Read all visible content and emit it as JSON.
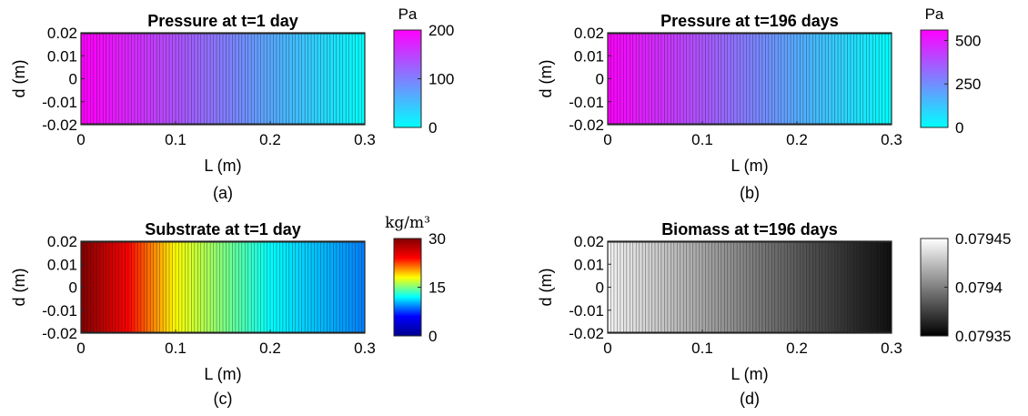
{
  "figure": {
    "panels": [
      {
        "title": "Pressure at t=1 day",
        "tag": "(a)",
        "xlabel": "L (m)",
        "ylabel": "d (m)",
        "colorbar": {
          "label": "Pa",
          "ticks": [
            "200",
            "100",
            "0"
          ],
          "colormap": "cool",
          "stops": [
            "#00ffff",
            "#ff00ff"
          ]
        }
      },
      {
        "title": "Pressure at t=196 days",
        "tag": "(b)",
        "xlabel": "L (m)",
        "ylabel": "d (m)",
        "colorbar": {
          "label": "Pa",
          "ticks": [
            "500",
            "250",
            "0"
          ],
          "colormap": "cool",
          "stops": [
            "#00ffff",
            "#ff00ff"
          ]
        }
      },
      {
        "title": "Substrate at t=1 day",
        "tag": "(c)",
        "xlabel": "L (m)",
        "ylabel": "d (m)",
        "colorbar": {
          "label": "kg/m³",
          "ticks": [
            "30",
            "15",
            "0"
          ],
          "colormap": "jet",
          "stops": [
            "#00008f",
            "#0000ff",
            "#00ffff",
            "#ffff00",
            "#ff0000",
            "#800000"
          ]
        }
      },
      {
        "title": "Biomass at t=196 days",
        "tag": "(d)",
        "xlabel": "L (m)",
        "ylabel": "d (m)",
        "colorbar": {
          "label": "",
          "ticks": [
            "0.07945",
            "0.0794",
            "0.07935"
          ],
          "colormap": "gray",
          "stops": [
            "#000000",
            "#ffffff"
          ]
        }
      }
    ]
  },
  "chart_data": [
    {
      "type": "heatmap",
      "title": "Pressure at t=1 day",
      "xlabel": "L (m)",
      "ylabel": "d (m)",
      "xlim": [
        0,
        0.3
      ],
      "ylim": [
        -0.02,
        0.02
      ],
      "xticks": [
        "0",
        "0.1",
        "0.2",
        "0.3"
      ],
      "yticks": [
        "0.02",
        "0.01",
        "0",
        "-0.01",
        "-0.02"
      ],
      "clim": [
        0,
        200
      ],
      "colorbar_label": "Pa",
      "field": {
        "x": [
          0,
          0.3
        ],
        "value": [
          205,
          0
        ]
      }
    },
    {
      "type": "heatmap",
      "title": "Pressure at t=196 days",
      "xlabel": "L (m)",
      "ylabel": "d (m)",
      "xlim": [
        0,
        0.3
      ],
      "ylim": [
        -0.02,
        0.02
      ],
      "xticks": [
        "0",
        "0.1",
        "0.2",
        "0.3"
      ],
      "yticks": [
        "0.02",
        "0.01",
        "0",
        "-0.01",
        "-0.02"
      ],
      "clim": [
        0,
        560
      ],
      "colorbar_label": "Pa",
      "field": {
        "x": [
          0,
          0.3
        ],
        "value": [
          560,
          0
        ]
      }
    },
    {
      "type": "heatmap",
      "title": "Substrate at t=1 day",
      "xlabel": "L (m)",
      "ylabel": "d (m)",
      "xlim": [
        0,
        0.3
      ],
      "ylim": [
        -0.02,
        0.02
      ],
      "xticks": [
        "0",
        "0.1",
        "0.2",
        "0.3"
      ],
      "yticks": [
        "0.02",
        "0.01",
        "0",
        "-0.01",
        "-0.02"
      ],
      "clim": [
        0,
        30
      ],
      "colorbar_label": "kg/m³",
      "field": {
        "x": [
          0,
          0.1,
          0.2,
          0.3
        ],
        "value": [
          30,
          18,
          12,
          9
        ]
      }
    },
    {
      "type": "heatmap",
      "title": "Biomass at t=196 days",
      "xlabel": "L (m)",
      "ylabel": "d (m)",
      "xlim": [
        0,
        0.3
      ],
      "ylim": [
        -0.02,
        0.02
      ],
      "xticks": [
        "0",
        "0.1",
        "0.2",
        "0.3"
      ],
      "yticks": [
        "0.02",
        "0.01",
        "0",
        "-0.01",
        "-0.02"
      ],
      "clim": [
        0.07935,
        0.07945
      ],
      "colorbar_label": "",
      "field": {
        "x": [
          0,
          0.3
        ],
        "value": [
          0.079445,
          0.079355
        ]
      }
    }
  ]
}
